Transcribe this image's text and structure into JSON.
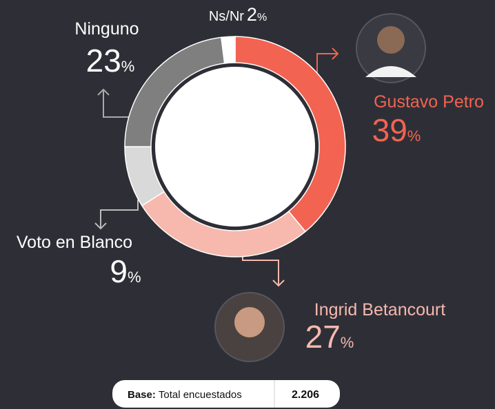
{
  "chart_data": {
    "type": "pie",
    "categories": [
      "Gustavo Petro",
      "Ingrid Betancourt",
      "Voto en Blanco",
      "Ninguno",
      "Ns/Nr"
    ],
    "values": [
      39,
      27,
      9,
      23,
      2
    ],
    "colors": [
      "#f26352",
      "#f7b8ae",
      "#d9d9d9",
      "#7f7f7f",
      "#ffffff"
    ],
    "unit": "%"
  },
  "footer": {
    "label": "Base:",
    "text": "Total encuestados",
    "value": "2.206"
  }
}
